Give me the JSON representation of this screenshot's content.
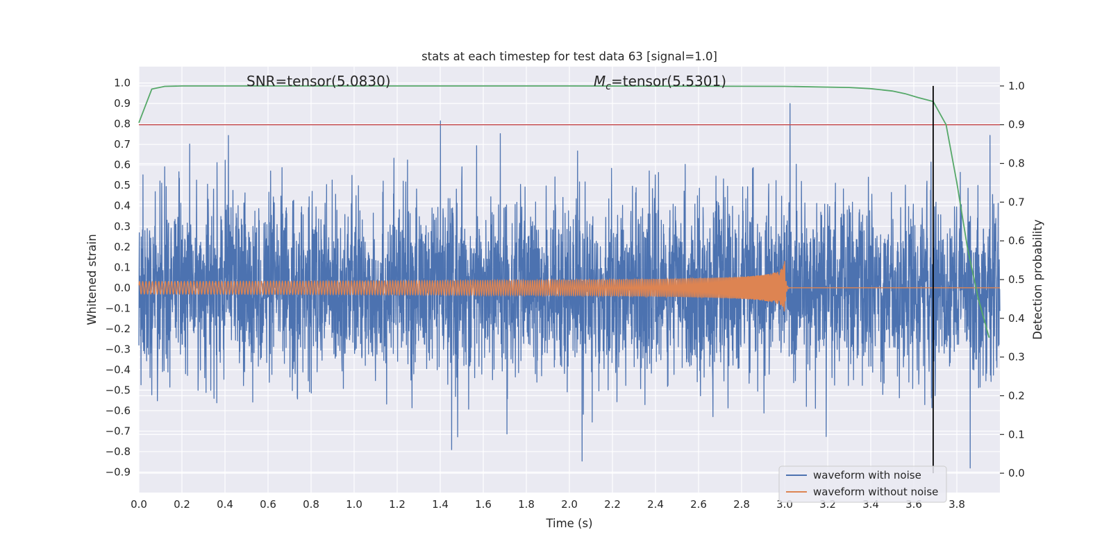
{
  "chart_data": {
    "type": "line",
    "title": "stats at each timestep for test data 63 [signal=1.0]",
    "xlabel": "Time (s)",
    "ylabel": "Whitened strain",
    "y2label": "Detection probability",
    "xlim": [
      0.0,
      4.0
    ],
    "ylim": [
      -1.0,
      1.08
    ],
    "y2lim": [
      -0.05,
      1.05
    ],
    "x_ticks": [
      "0.0",
      "0.2",
      "0.4",
      "0.6",
      "0.8",
      "1.0",
      "1.2",
      "1.4",
      "1.6",
      "1.8",
      "2.0",
      "2.2",
      "2.4",
      "2.6",
      "2.8",
      "3.0",
      "3.2",
      "3.4",
      "3.6",
      "3.8"
    ],
    "y_ticks": [
      "−0.9",
      "−0.8",
      "−0.7",
      "−0.6",
      "−0.5",
      "−0.4",
      "−0.3",
      "−0.2",
      "−0.1",
      "0.0",
      "0.1",
      "0.2",
      "0.3",
      "0.4",
      "0.5",
      "0.6",
      "0.7",
      "0.8",
      "0.9",
      "1.0"
    ],
    "y2_ticks": [
      "0.0",
      "0.1",
      "0.2",
      "0.3",
      "0.4",
      "0.5",
      "0.6",
      "0.7",
      "0.8",
      "0.9",
      "1.0"
    ],
    "grid": true,
    "legend_position": "lower-right",
    "annotations": {
      "snr": "SNR=tensor(5.0830)",
      "mc_symbol": "M",
      "mc_subscript": "c",
      "mc_value": "=tensor(5.5301)"
    },
    "series": [
      {
        "name": "waveform with noise",
        "color": "#4c72b0",
        "axis": "left",
        "description_range": [
          0.0,
          4.0
        ],
        "approx_extremes": {
          "max": 1.0,
          "min": -0.88
        }
      },
      {
        "name": "waveform without noise",
        "color": "#dd8452",
        "axis": "left",
        "chirp_end_x": 3.0,
        "chirp_end_amplitude": 0.13
      },
      {
        "name": "detection probability",
        "color": "#55a868",
        "axis": "right",
        "x": [
          0.0,
          0.06,
          0.12,
          0.2,
          1.0,
          2.0,
          3.0,
          3.3,
          3.4,
          3.5,
          3.56,
          3.62,
          3.69,
          3.75,
          3.8,
          3.85,
          3.9,
          3.95
        ],
        "y": [
          0.905,
          0.992,
          0.999,
          1.0,
          1.0,
          1.0,
          0.999,
          0.996,
          0.993,
          0.987,
          0.98,
          0.97,
          0.96,
          0.9,
          0.75,
          0.58,
          0.45,
          0.35
        ]
      }
    ],
    "threshold_line": {
      "color": "#c44e52",
      "axis": "right",
      "y": 0.9
    },
    "vertical_marker": {
      "color": "#000000",
      "x": 3.69
    }
  }
}
